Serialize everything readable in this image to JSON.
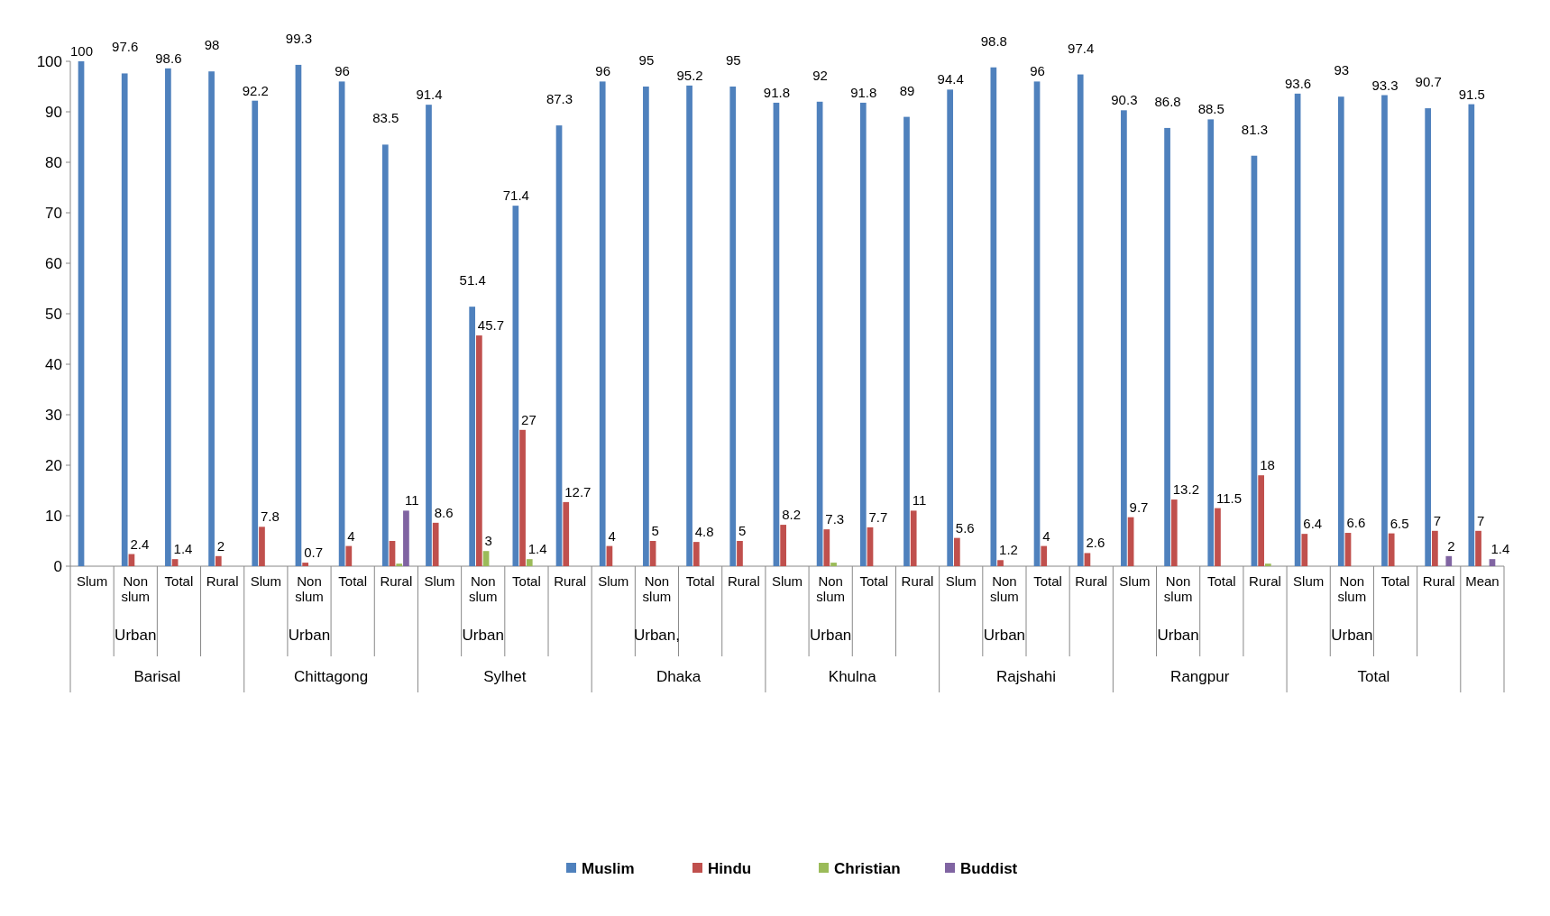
{
  "chart_data": {
    "type": "bar",
    "categories": [
      "Slum",
      "Non slum",
      "Total",
      "Rural",
      "Slum",
      "Non slum",
      "Total",
      "Rural",
      "Slum",
      "Non slum",
      "Total",
      "Rural",
      "Slum",
      "Non slum",
      "Total",
      "Rural",
      "Slum",
      "Non slum",
      "Total",
      "Rural",
      "Slum",
      "Non slum",
      "Total",
      "Rural",
      "Slum",
      "Non slum",
      "Total",
      "Rural",
      "Slum",
      "Non slum",
      "Total",
      "Rural",
      "Mean"
    ],
    "series": [
      {
        "name": "Muslim",
        "color": "#4f81bd",
        "values": [
          100,
          97.6,
          98.6,
          98,
          92.2,
          99.3,
          96,
          83.5,
          91.4,
          51.4,
          71.4,
          87.3,
          96,
          95,
          95.2,
          95,
          91.8,
          92,
          91.8,
          89,
          94.4,
          98.8,
          96,
          97.4,
          90.3,
          86.8,
          88.5,
          81.3,
          93.6,
          93,
          93.3,
          90.7,
          91.5
        ],
        "value_labels": [
          "100",
          "97.6",
          "98.6",
          "98",
          "92.2",
          "99.3",
          "96",
          "83.5",
          "91.4",
          "51.4",
          "71.4",
          "87.3",
          "96",
          "95",
          "95.2",
          "95",
          "91.8",
          "92",
          "91.8",
          "89",
          "94.4",
          "98.8",
          "96",
          "97.4",
          "90.3",
          "86.8",
          "88.5",
          "81.3",
          "93.6",
          "93",
          "93.3",
          "90.7",
          "91.5"
        ]
      },
      {
        "name": "Hindu",
        "color": "#c0504d",
        "values": [
          0,
          2.4,
          1.4,
          2,
          7.8,
          0.7,
          4,
          5,
          8.6,
          45.7,
          27,
          12.7,
          4,
          5,
          4.8,
          5,
          8.2,
          7.3,
          7.7,
          11,
          5.6,
          1.2,
          4,
          2.6,
          9.7,
          13.2,
          11.5,
          18,
          6.4,
          6.6,
          6.5,
          7,
          7
        ],
        "value_labels": [
          null,
          "2.4",
          "1.4",
          "2",
          "7.8",
          "0.7",
          "4",
          null,
          "8.6",
          "45.7",
          "27",
          "12.7",
          "4",
          "5",
          "4.8",
          "5",
          "8.2",
          "7.3",
          "7.7",
          "11",
          "5.6",
          "1.2",
          "4",
          "2.6",
          "9.7",
          "13.2",
          "11.5",
          "18",
          "6.4",
          "6.6",
          "6.5",
          "7",
          "7"
        ]
      },
      {
        "name": "Christian",
        "color": "#9bbb59",
        "values": [
          0,
          0,
          0,
          0,
          0,
          0,
          0,
          0.5,
          0,
          3,
          1.4,
          0,
          0,
          0,
          0,
          0,
          0,
          0.7,
          0,
          0,
          0,
          0,
          0,
          0,
          0,
          0,
          0,
          0.5,
          0,
          0,
          0,
          0,
          0
        ],
        "value_labels": [
          null,
          null,
          null,
          null,
          null,
          null,
          null,
          null,
          null,
          "3",
          "1.4",
          null,
          null,
          null,
          null,
          null,
          null,
          null,
          null,
          null,
          null,
          null,
          null,
          null,
          null,
          null,
          null,
          null,
          null,
          null,
          null,
          null,
          null
        ]
      },
      {
        "name": "Buddist",
        "color": "#8064a2",
        "values": [
          0,
          0,
          0,
          0,
          0,
          0,
          0,
          11,
          0,
          0,
          0,
          0,
          0,
          0,
          0,
          0,
          0,
          0,
          0,
          0,
          0,
          0,
          0,
          0,
          0,
          0,
          0,
          0,
          0,
          0,
          0,
          2,
          1.4
        ],
        "value_labels": [
          null,
          null,
          null,
          null,
          null,
          null,
          null,
          "11",
          null,
          null,
          null,
          null,
          null,
          null,
          null,
          null,
          null,
          null,
          null,
          null,
          null,
          null,
          null,
          null,
          null,
          null,
          null,
          null,
          null,
          null,
          null,
          "2",
          "1.4"
        ]
      }
    ],
    "annotations": [
      "Urban",
      "Barisal",
      "Urban",
      "Chittagong",
      "Urban",
      "Sylhet",
      "Urban,",
      "Dhaka",
      "Urban",
      "Khulna",
      "Urban",
      "Rajshahi",
      "Urban",
      "Rangpur",
      "Urban",
      "Total"
    ],
    "ylim": [
      0,
      100
    ],
    "yticks": [
      0,
      10,
      20,
      30,
      40,
      50,
      60,
      70,
      80,
      90,
      100
    ],
    "legend": "bottom"
  }
}
